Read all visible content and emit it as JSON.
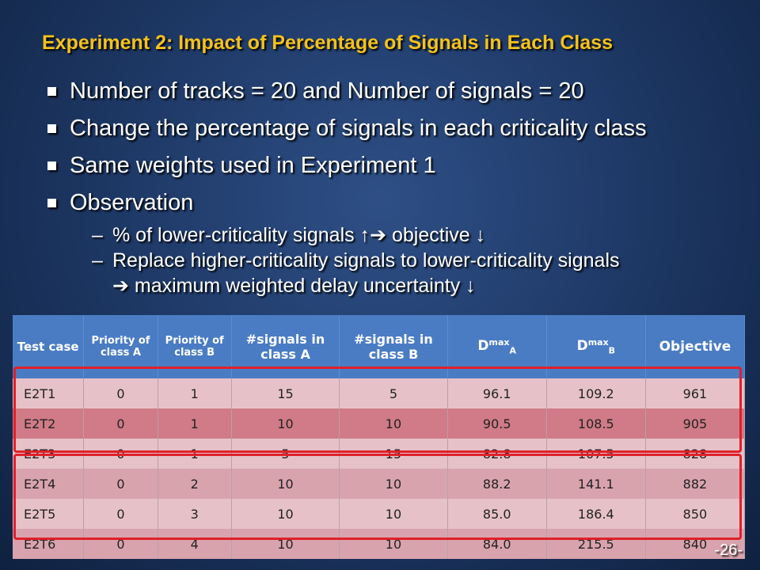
{
  "slide": {
    "title": "Experiment 2: Impact of Percentage of Signals in Each Class",
    "bullets": [
      "Number of tracks = 20 and Number of signals = 20",
      "Change the percentage of signals in each criticality class",
      "Same weights used in Experiment 1",
      "Observation"
    ],
    "subbullets": [
      "% of lower-criticality signals ↑➔ objective ↓",
      "Replace higher-criticality signals to lower-criticality signals",
      "➔ maximum weighted delay uncertainty ↓"
    ],
    "page_number": "-26-"
  },
  "table": {
    "headers": {
      "test_case": "Test case",
      "priority_a": "Priority of class A",
      "priority_b": "Priority of class B",
      "signals_a": "#signals in class A",
      "signals_b": "#signals in class B",
      "dmax_a_base": "D",
      "dmax_a_sup": "max",
      "dmax_a_sub": "A",
      "dmax_b_base": "D",
      "dmax_b_sup": "max",
      "dmax_b_sub": "B",
      "objective": "Objective"
    },
    "rows": [
      [
        "E2T1",
        "0",
        "1",
        "15",
        "5",
        "96.1",
        "109.2",
        "961"
      ],
      [
        "E2T2",
        "0",
        "1",
        "10",
        "10",
        "90.5",
        "108.5",
        "905"
      ],
      [
        "E2T3",
        "0",
        "1",
        "5",
        "15",
        "82.8",
        "107.5",
        "828"
      ],
      [
        "E2T4",
        "0",
        "2",
        "10",
        "10",
        "88.2",
        "141.1",
        "882"
      ],
      [
        "E2T5",
        "0",
        "3",
        "10",
        "10",
        "85.0",
        "186.4",
        "850"
      ],
      [
        "E2T6",
        "0",
        "4",
        "10",
        "10",
        "84.0",
        "215.5",
        "840"
      ]
    ]
  },
  "colors": {
    "title": "#f5c21b",
    "header_bg": "#4a7cc4",
    "highlight_box": "#e0202a"
  }
}
